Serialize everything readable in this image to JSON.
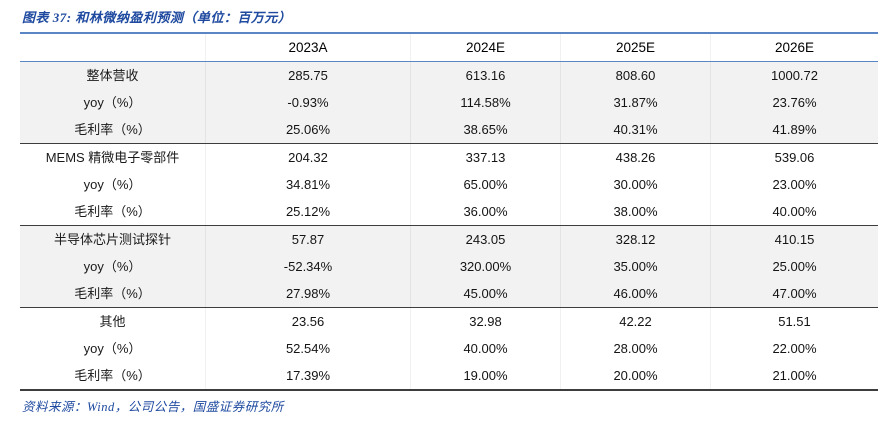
{
  "figure": {
    "title": "图表 37: 和林微纳盈利预测（单位：百万元）",
    "source": "资料来源：Wind，公司公告，国盛证券研究所"
  },
  "colors": {
    "title_blue": "#1F4AA0",
    "rule_blue": "#5A86C5",
    "divider_dark": "#3D3D3D",
    "band_gray": "#F2F2F2"
  },
  "table": {
    "columns": [
      "",
      "2023A",
      "2024E",
      "2025E",
      "2026E"
    ],
    "sections": [
      {
        "shaded": true,
        "rows": [
          {
            "label": "整体营收",
            "values": [
              "285.75",
              "613.16",
              "808.60",
              "1000.72"
            ]
          },
          {
            "label": "yoy（%）",
            "values": [
              "-0.93%",
              "114.58%",
              "31.87%",
              "23.76%"
            ]
          },
          {
            "label": "毛利率（%）",
            "values": [
              "25.06%",
              "38.65%",
              "40.31%",
              "41.89%"
            ]
          }
        ]
      },
      {
        "shaded": false,
        "rows": [
          {
            "label": "MEMS 精微电子零部件",
            "values": [
              "204.32",
              "337.13",
              "438.26",
              "539.06"
            ]
          },
          {
            "label": "yoy（%）",
            "values": [
              "34.81%",
              "65.00%",
              "30.00%",
              "23.00%"
            ]
          },
          {
            "label": "毛利率（%）",
            "values": [
              "25.12%",
              "36.00%",
              "38.00%",
              "40.00%"
            ]
          }
        ]
      },
      {
        "shaded": true,
        "rows": [
          {
            "label": "半导体芯片测试探针",
            "values": [
              "57.87",
              "243.05",
              "328.12",
              "410.15"
            ]
          },
          {
            "label": "yoy（%）",
            "values": [
              "-52.34%",
              "320.00%",
              "35.00%",
              "25.00%"
            ]
          },
          {
            "label": "毛利率（%）",
            "values": [
              "27.98%",
              "45.00%",
              "46.00%",
              "47.00%"
            ]
          }
        ]
      },
      {
        "shaded": false,
        "rows": [
          {
            "label": "其他",
            "values": [
              "23.56",
              "32.98",
              "42.22",
              "51.51"
            ]
          },
          {
            "label": "yoy（%）",
            "values": [
              "52.54%",
              "40.00%",
              "28.00%",
              "22.00%"
            ]
          },
          {
            "label": "毛利率（%）",
            "values": [
              "17.39%",
              "19.00%",
              "20.00%",
              "21.00%"
            ]
          }
        ]
      }
    ]
  }
}
